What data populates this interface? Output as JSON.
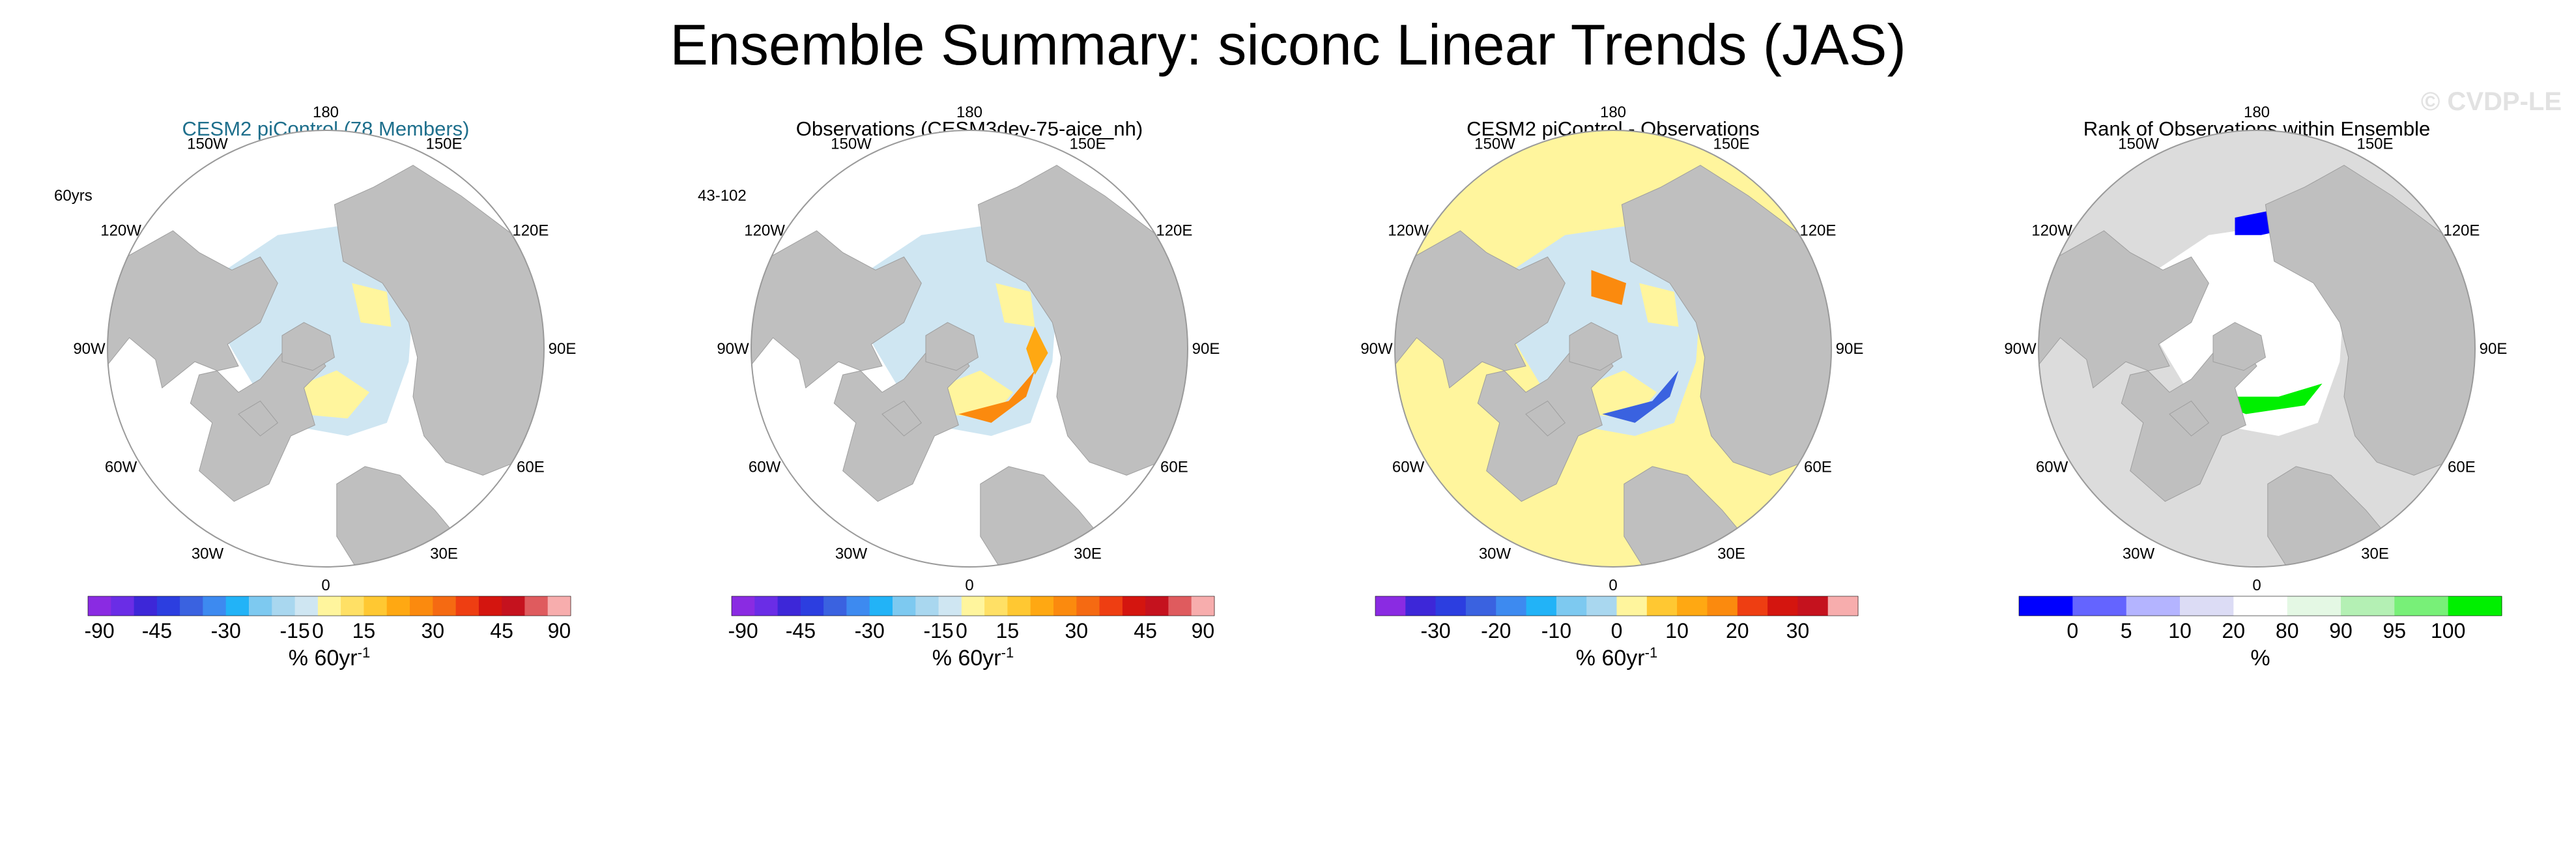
{
  "main_title": "Ensemble Summary: siconc Linear Trends (JAS)",
  "watermark": "© CVDP-LE",
  "chart_data": [
    {
      "type": "heatmap",
      "projection": "north polar stereographic",
      "title": "CESM2 piControl (78 Members)",
      "title_color": "#1e6f8c",
      "corner_label": "60yrs",
      "longitude_labels": [
        "180",
        "150E",
        "120E",
        "90E",
        "60E",
        "30E",
        "0",
        "30W",
        "60W",
        "90W",
        "120W",
        "150W"
      ],
      "colorbar": {
        "colors": [
          "#8a2be2",
          "#6a2de6",
          "#3d27d8",
          "#2c3ee0",
          "#3a62e0",
          "#3d8af0",
          "#22b3f7",
          "#7dc9f0",
          "#a9d7ef",
          "#cfe6f2",
          "#fff59d",
          "#ffe065",
          "#ffc832",
          "#ffa812",
          "#fb8a0e",
          "#f56a12",
          "#ee3e12",
          "#d4150f",
          "#c5121e",
          "#df5b5e",
          "#f7adad"
        ],
        "tick_labels": [
          "-90",
          "-45",
          "-30",
          "-15",
          "0",
          "15",
          "30",
          "45",
          "90"
        ],
        "tick_values": [
          -90,
          -45,
          -30,
          -15,
          0,
          15,
          30,
          45,
          90
        ],
        "unit": "% 60yr",
        "unit_superscript": "-1",
        "range": [
          -90,
          90
        ]
      }
    },
    {
      "type": "heatmap",
      "projection": "north polar stereographic",
      "title": "Observations (CESM3dev-75-aice_nh)",
      "title_color": "#000000",
      "corner_label": "43-102",
      "longitude_labels": [
        "180",
        "150E",
        "120E",
        "90E",
        "60E",
        "30E",
        "0",
        "30W",
        "60W",
        "90W",
        "120W",
        "150W"
      ],
      "colorbar": {
        "colors": [
          "#8a2be2",
          "#6a2de6",
          "#3d27d8",
          "#2c3ee0",
          "#3a62e0",
          "#3d8af0",
          "#22b3f7",
          "#7dc9f0",
          "#a9d7ef",
          "#cfe6f2",
          "#fff59d",
          "#ffe065",
          "#ffc832",
          "#ffa812",
          "#fb8a0e",
          "#f56a12",
          "#ee3e12",
          "#d4150f",
          "#c5121e",
          "#df5b5e",
          "#f7adad"
        ],
        "tick_labels": [
          "-90",
          "-45",
          "-30",
          "-15",
          "0",
          "15",
          "30",
          "45",
          "90"
        ],
        "tick_values": [
          -90,
          -45,
          -30,
          -15,
          0,
          15,
          30,
          45,
          90
        ],
        "unit": "% 60yr",
        "unit_superscript": "-1",
        "range": [
          -90,
          90
        ]
      }
    },
    {
      "type": "heatmap",
      "projection": "north polar stereographic",
      "title": "CESM2 piControl - Observations",
      "title_color": "#000000",
      "corner_label": "",
      "longitude_labels": [
        "180",
        "150E",
        "120E",
        "90E",
        "60E",
        "30E",
        "0",
        "30W",
        "60W",
        "90W",
        "120W",
        "150W"
      ],
      "colorbar": {
        "colors": [
          "#8a2be2",
          "#3d27d8",
          "#2c3ee0",
          "#3a62e0",
          "#3d8af0",
          "#22b3f7",
          "#7dc9f0",
          "#a9d7ef",
          "#fff59d",
          "#ffc832",
          "#ffa812",
          "#fb8a0e",
          "#ee3e12",
          "#d4150f",
          "#c5121e",
          "#f7adad"
        ],
        "tick_labels": [
          "-30",
          "-20",
          "-10",
          "0",
          "10",
          "20",
          "30"
        ],
        "tick_values": [
          -30,
          -20,
          -10,
          0,
          10,
          20,
          30
        ],
        "unit": "% 60yr",
        "unit_superscript": "-1",
        "range": [
          -40,
          40
        ]
      }
    },
    {
      "type": "heatmap",
      "projection": "north polar stereographic",
      "title": "Rank of Observations within Ensemble",
      "title_color": "#000000",
      "corner_label": "",
      "longitude_labels": [
        "180",
        "150E",
        "120E",
        "90E",
        "60E",
        "30E",
        "0",
        "30W",
        "60W",
        "90W",
        "120W",
        "150W"
      ],
      "colorbar": {
        "colors": [
          "#0000ff",
          "#6464ff",
          "#b4b4ff",
          "#dcdcf5",
          "#ffffff",
          "#e4f8e4",
          "#b4f0b4",
          "#78f078",
          "#00f000"
        ],
        "tick_labels": [
          "0",
          "5",
          "10",
          "20",
          "80",
          "90",
          "95",
          "100"
        ],
        "tick_values": [
          0,
          5,
          10,
          20,
          80,
          90,
          95,
          100
        ],
        "unit": "%",
        "unit_superscript": "",
        "range": [
          0,
          100
        ]
      }
    }
  ]
}
